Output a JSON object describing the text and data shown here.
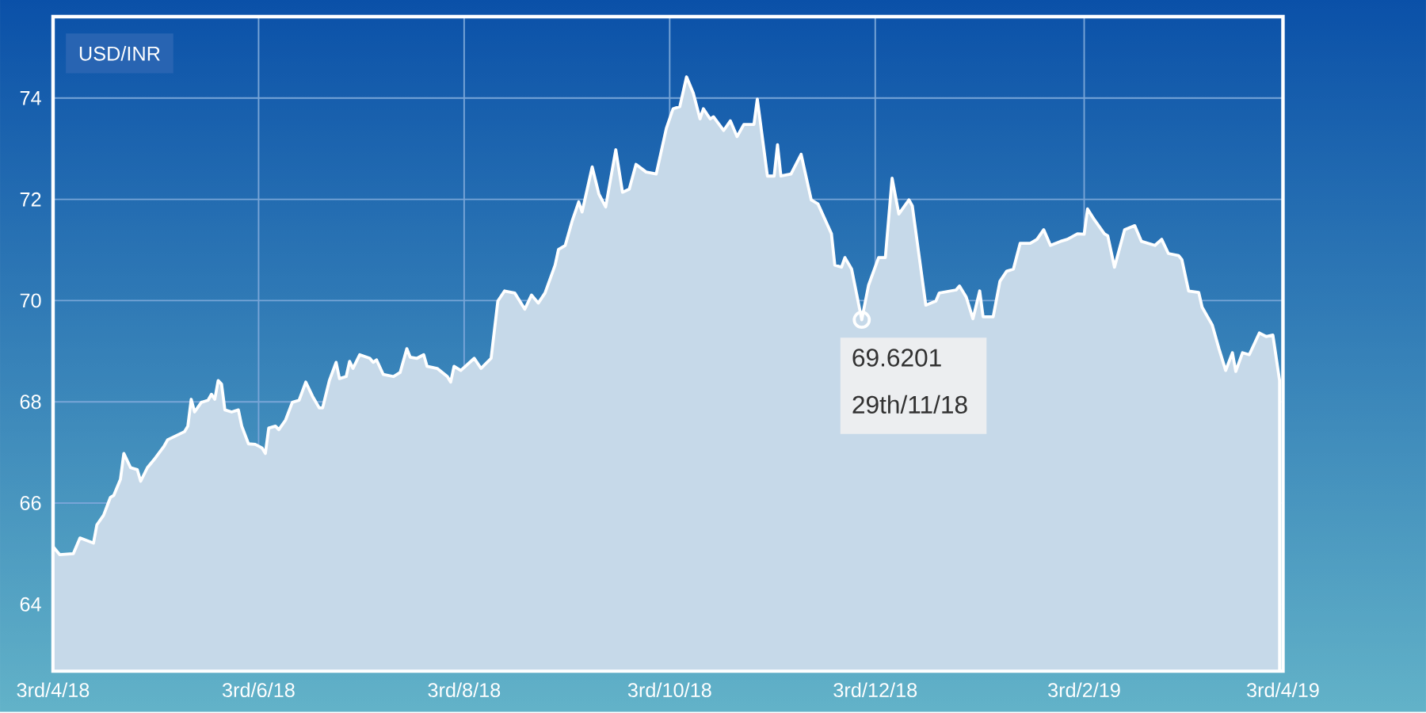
{
  "chart_data": {
    "type": "area",
    "title": "USD/INR",
    "x": [
      "2018-04-03",
      "2018-04-05",
      "2018-04-09",
      "2018-04-11",
      "2018-04-15",
      "2018-04-16",
      "2018-04-18",
      "2018-04-20",
      "2018-04-21",
      "2018-04-23",
      "2018-04-24",
      "2018-04-26",
      "2018-04-28",
      "2018-04-29",
      "2018-05-01",
      "2018-05-03",
      "2018-05-06",
      "2018-05-07",
      "2018-05-12",
      "2018-05-13",
      "2018-05-14",
      "2018-05-15",
      "2018-05-17",
      "2018-05-19",
      "2018-05-20",
      "2018-05-21",
      "2018-05-22",
      "2018-05-23",
      "2018-05-24",
      "2018-05-26",
      "2018-05-28",
      "2018-05-29",
      "2018-05-31",
      "2018-06-02",
      "2018-06-04",
      "2018-06-05",
      "2018-06-06",
      "2018-06-08",
      "2018-06-09",
      "2018-06-11",
      "2018-06-13",
      "2018-06-15",
      "2018-06-17",
      "2018-06-19",
      "2018-06-21",
      "2018-06-22",
      "2018-06-24",
      "2018-06-26",
      "2018-06-27",
      "2018-06-29",
      "2018-06-30",
      "2018-07-01",
      "2018-07-03",
      "2018-07-06",
      "2018-07-07",
      "2018-07-08",
      "2018-07-10",
      "2018-07-13",
      "2018-07-15",
      "2018-07-17",
      "2018-07-18",
      "2018-07-20",
      "2018-07-22",
      "2018-07-23",
      "2018-07-26",
      "2018-07-29",
      "2018-07-30",
      "2018-07-31",
      "2018-08-02",
      "2018-08-06",
      "2018-08-08",
      "2018-08-11",
      "2018-08-13",
      "2018-08-15",
      "2018-08-18",
      "2018-08-21",
      "2018-08-23",
      "2018-08-25",
      "2018-08-27",
      "2018-08-30",
      "2018-08-31",
      "2018-09-02",
      "2018-09-04",
      "2018-09-06",
      "2018-09-07",
      "2018-09-10",
      "2018-09-12",
      "2018-09-14",
      "2018-09-17",
      "2018-09-19",
      "2018-09-21",
      "2018-09-23",
      "2018-09-26",
      "2018-09-29",
      "2018-10-02",
      "2018-10-04",
      "2018-10-06",
      "2018-10-08",
      "2018-10-10",
      "2018-10-12",
      "2018-10-13",
      "2018-10-15",
      "2018-10-16",
      "2018-10-19",
      "2018-10-21",
      "2018-10-23",
      "2018-10-25",
      "2018-10-28",
      "2018-10-29",
      "2018-11-01",
      "2018-11-03",
      "2018-11-04",
      "2018-11-05",
      "2018-11-08",
      "2018-11-11",
      "2018-11-14",
      "2018-11-16",
      "2018-11-20",
      "2018-11-21",
      "2018-11-23",
      "2018-11-24",
      "2018-11-26",
      "2018-11-29",
      "2018-12-01",
      "2018-12-04",
      "2018-12-06",
      "2018-12-08",
      "2018-12-10",
      "2018-12-13",
      "2018-12-14",
      "2018-12-18",
      "2018-12-21",
      "2018-12-22",
      "2018-12-27",
      "2018-12-28",
      "2018-12-30",
      "2019-01-01",
      "2019-01-03",
      "2019-01-04",
      "2019-01-07",
      "2019-01-09",
      "2019-01-11",
      "2019-01-13",
      "2019-01-15",
      "2019-01-18",
      "2019-01-20",
      "2019-01-22",
      "2019-01-24",
      "2019-01-27",
      "2019-01-29",
      "2019-02-01",
      "2019-02-03",
      "2019-02-04",
      "2019-02-06",
      "2019-02-09",
      "2019-02-10",
      "2019-02-12",
      "2019-02-15",
      "2019-02-18",
      "2019-02-20",
      "2019-02-24",
      "2019-02-26",
      "2019-02-28",
      "2019-03-03",
      "2019-03-04",
      "2019-03-06",
      "2019-03-09",
      "2019-03-10",
      "2019-03-13",
      "2019-03-15",
      "2019-03-17",
      "2019-03-19",
      "2019-03-20",
      "2019-03-22",
      "2019-03-24",
      "2019-03-27",
      "2019-03-29",
      "2019-03-31",
      "2019-04-02"
    ],
    "series": [
      {
        "color": "#c6d9e9",
        "values": [
          65.14,
          64.98,
          65.0,
          65.31,
          65.21,
          65.57,
          65.76,
          66.11,
          66.15,
          66.47,
          66.98,
          66.7,
          66.66,
          66.43,
          66.7,
          66.86,
          67.13,
          67.25,
          67.41,
          67.52,
          68.05,
          67.8,
          67.99,
          68.03,
          68.15,
          68.05,
          68.42,
          68.35,
          67.84,
          67.8,
          67.84,
          67.52,
          67.17,
          67.16,
          67.09,
          66.98,
          67.48,
          67.52,
          67.45,
          67.64,
          67.99,
          68.03,
          68.39,
          68.11,
          67.88,
          67.88,
          68.42,
          68.78,
          68.46,
          68.5,
          68.8,
          68.66,
          68.93,
          68.86,
          68.78,
          68.83,
          68.54,
          68.5,
          68.58,
          69.05,
          68.88,
          68.86,
          68.93,
          68.7,
          68.66,
          68.5,
          68.39,
          68.7,
          68.62,
          68.86,
          68.66,
          68.86,
          69.99,
          70.19,
          70.15,
          69.83,
          70.11,
          69.95,
          70.15,
          70.7,
          71.01,
          71.09,
          71.56,
          71.95,
          71.75,
          72.64,
          72.1,
          71.85,
          72.98,
          72.14,
          72.2,
          72.69,
          72.54,
          72.5,
          73.4,
          73.79,
          73.83,
          74.42,
          74.1,
          73.59,
          73.79,
          73.59,
          73.63,
          73.36,
          73.55,
          73.24,
          73.48,
          73.48,
          73.98,
          72.46,
          72.46,
          73.08,
          72.46,
          72.5,
          72.89,
          71.99,
          71.91,
          71.32,
          70.7,
          70.66,
          70.85,
          70.62,
          69.6201,
          70.3,
          70.85,
          70.85,
          72.42,
          71.71,
          71.99,
          71.87,
          69.91,
          69.99,
          70.15,
          70.21,
          70.29,
          70.07,
          69.64,
          70.19,
          69.68,
          69.68,
          70.38,
          70.58,
          70.62,
          71.13,
          71.13,
          71.21,
          71.4,
          71.09,
          71.17,
          71.21,
          71.32,
          71.31,
          71.81,
          71.6,
          71.32,
          71.28,
          70.66,
          71.4,
          71.48,
          71.17,
          71.09,
          71.21,
          70.93,
          70.89,
          70.81,
          70.19,
          70.16,
          69.87,
          69.52,
          69.05,
          68.62,
          68.97,
          68.6,
          68.97,
          68.93,
          69.36,
          69.29,
          69.32,
          68.42
        ]
      }
    ],
    "xlim": [
      "2018-04-03",
      "2019-04-03"
    ],
    "xticks": [
      {
        "value": "2018-04-03",
        "label": "3rd/4/18"
      },
      {
        "value": "2018-06-03",
        "label": "3rd/6/18"
      },
      {
        "value": "2018-08-03",
        "label": "3rd/8/18"
      },
      {
        "value": "2018-10-03",
        "label": "3rd/10/18"
      },
      {
        "value": "2018-12-03",
        "label": "3rd/12/18"
      },
      {
        "value": "2019-02-03",
        "label": "3rd/2/19"
      },
      {
        "value": "2019-04-03",
        "label": "3rd/4/19"
      }
    ],
    "ylim": [
      62.68,
      75.61
    ],
    "yticks": [
      64,
      66,
      68,
      70,
      72,
      74
    ],
    "grid": true,
    "annotations": [
      {
        "text": "69.6201",
        "x": "2018-11-29",
        "y": 69.6201
      },
      "29th/11/18"
    ]
  }
}
